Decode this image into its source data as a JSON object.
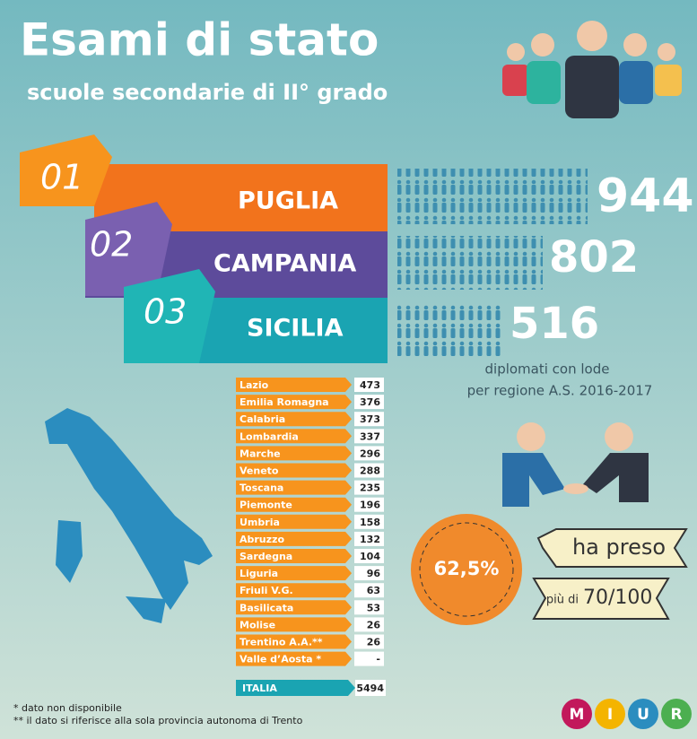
{
  "header": {
    "title": "Esami di stato",
    "subtitle": "scuole secondarie di II° grado"
  },
  "top": [
    {
      "rank": "01",
      "region": "PUGLIA",
      "value": 944
    },
    {
      "rank": "02",
      "region": "CAMPANIA",
      "value": 802
    },
    {
      "rank": "03",
      "region": "SICILIA",
      "value": 516
    }
  ],
  "caption": [
    "diplomati con lode",
    "per regione A.S. 2016-2017"
  ],
  "table": {
    "rows": [
      [
        "Lazio",
        473
      ],
      [
        "Emilia Romagna",
        376
      ],
      [
        "Calabria",
        373
      ],
      [
        "Lombardia",
        337
      ],
      [
        "Marche",
        296
      ],
      [
        "Veneto",
        288
      ],
      [
        "Toscana",
        235
      ],
      [
        "Piemonte",
        196
      ],
      [
        "Umbria",
        158
      ],
      [
        "Abruzzo",
        132
      ],
      [
        "Sardegna",
        104
      ],
      [
        "Liguria",
        96
      ],
      [
        "Friuli V.G.",
        63
      ],
      [
        "Basilicata",
        53
      ],
      [
        "Molise",
        26
      ],
      [
        "Trentino A.A.**",
        26
      ],
      [
        "Valle d’Aosta *",
        "-"
      ]
    ],
    "total": [
      "ITALIA",
      5494
    ]
  },
  "badge": "62,5%",
  "ribbon": {
    "top": "ha preso",
    "small": "più di",
    "big": "70/100"
  },
  "footnotes": [
    "* dato non disponibile",
    "** il dato si riferisce alla sola provincia autonoma di Trento"
  ],
  "logo": [
    "M",
    "I",
    "U",
    "R"
  ]
}
